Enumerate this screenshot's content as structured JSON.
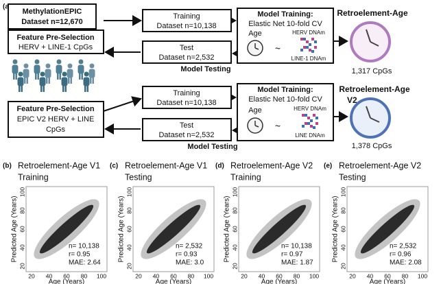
{
  "panel_a": {
    "label": "(a)",
    "dataset_box": {
      "title": "MethylationEPIC",
      "line2": "Dataset n=12,670"
    },
    "v1": {
      "preselection": {
        "title": "Feature Pre-Selection",
        "lines": [
          "HERV + LINE-1 CpGs"
        ]
      },
      "training": {
        "title": "Training",
        "line2": "Dataset n=10,138"
      },
      "test": {
        "title": "Test",
        "line2": "Dataset n=2,532"
      },
      "model": {
        "title": "Model Training:",
        "method": "Elastic Net 10-fold CV",
        "age": "Age",
        "tilde": "~",
        "herv": "HERV DNAm",
        "line": "LINE-1 DNAm"
      },
      "testing_label": "Model Testing",
      "clock_title": [
        "Retroelement-Age"
      ],
      "cpgs": "1,317 CpGs"
    },
    "v2": {
      "preselection": {
        "title": "Feature Pre-Selection",
        "lines": [
          "EPIC V2 HERV + LINE",
          "CpGs"
        ]
      },
      "training": {
        "title": "Training",
        "line2": "Dataset n=10,138"
      },
      "test": {
        "title": "Test",
        "line2": "Dataset n=2,532"
      },
      "model": {
        "title": "Model Training:",
        "method": "Elastic Net 10-fold CV",
        "age": "Age",
        "tilde": "~",
        "herv": "HERV DNAm",
        "line": "LINE DNAm"
      },
      "testing_label": "Model Testing",
      "clock_title": [
        "Retroelement-Age",
        "V2"
      ],
      "cpgs": "1,378 CpGs"
    }
  },
  "panels": [
    {
      "label": "(b)",
      "title": [
        "Retroelement-Age V1",
        "Training"
      ],
      "y_label": "Predicted Age (Years)",
      "x_label": "Age (Years)",
      "xticks": [
        20,
        40,
        60,
        80,
        100
      ],
      "yticks": [
        20,
        40,
        60,
        80,
        100
      ],
      "stats": [
        "n= 10,138",
        "r= 0.95",
        "MAE: 2.64"
      ]
    },
    {
      "label": "(c)",
      "title": [
        "Retroelement-Age V1",
        "Testing"
      ],
      "y_label": "Predicted Age (Years)",
      "x_label": "Age (Years)",
      "xticks": [
        20,
        40,
        60,
        80,
        100
      ],
      "yticks": [
        20,
        40,
        60,
        80,
        100
      ],
      "stats": [
        "n= 2,532",
        "r= 0.93",
        "MAE: 3.0"
      ]
    },
    {
      "label": "(d)",
      "title": [
        "Retroelement-Age V2",
        "Training"
      ],
      "y_label": "Predicted Age (Years)",
      "x_label": "Age (Years)",
      "xticks": [
        20,
        40,
        60,
        80,
        100
      ],
      "yticks": [
        20,
        40,
        60,
        80,
        100
      ],
      "stats": [
        "n= 10,138",
        "r= 0.97",
        "MAE: 1.87"
      ]
    },
    {
      "label": "(e)",
      "title": [
        "Retroelement-Age V2",
        "Testing"
      ],
      "y_label": "Predicted Age (Years)",
      "x_label": "Age (Years)",
      "xticks": [
        20,
        40,
        60,
        80,
        100
      ],
      "yticks": [
        20,
        40,
        60,
        80,
        100
      ],
      "stats": [
        "n= 2,532",
        "r= 0.96",
        "MAE: 2.08"
      ]
    }
  ]
}
